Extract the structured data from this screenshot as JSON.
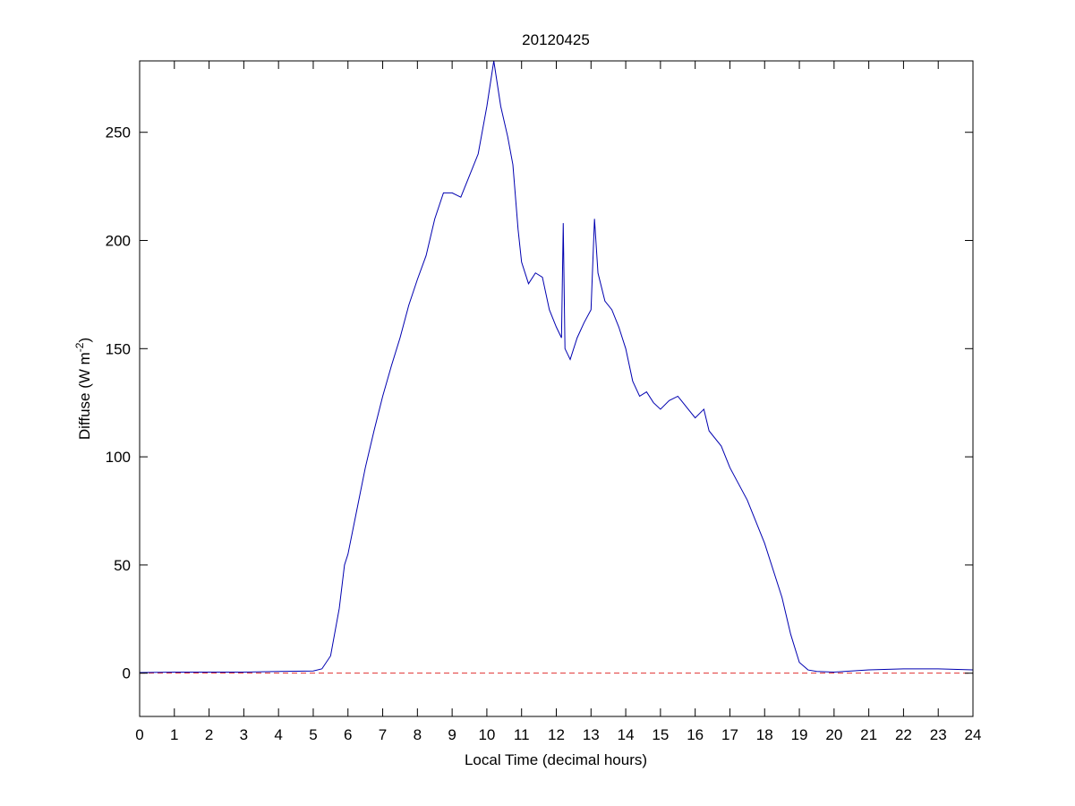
{
  "chart_data": {
    "type": "line",
    "title": "20120425",
    "xlabel": "Local Time (decimal hours)",
    "ylabel": [
      "Diffuse (W m",
      "-2",
      ")"
    ],
    "series": [
      {
        "color": "#0000b0",
        "x": [
          0,
          1,
          2,
          3,
          4,
          5,
          5.25,
          5.5,
          5.75,
          5.9,
          6,
          6.25,
          6.5,
          6.75,
          7,
          7.25,
          7.5,
          7.75,
          8,
          8.25,
          8.5,
          8.75,
          9,
          9.25,
          9.5,
          9.75,
          10,
          10.2,
          10.4,
          10.6,
          10.75,
          10.9,
          11,
          11.2,
          11.4,
          11.6,
          11.8,
          12,
          12.15,
          12.2,
          12.25,
          12.4,
          12.6,
          12.8,
          13,
          13.1,
          13.2,
          13.4,
          13.6,
          13.8,
          14,
          14.2,
          14.4,
          14.6,
          14.8,
          15,
          15.25,
          15.5,
          15.75,
          16,
          16.25,
          16.4,
          16.75,
          17,
          17.5,
          18,
          18.5,
          18.75,
          19,
          19.25,
          19.5,
          20,
          20.5,
          21,
          22,
          23,
          24
        ],
        "values": [
          0.3,
          0.5,
          0.5,
          0.5,
          0.8,
          1,
          2,
          8,
          30,
          50,
          55,
          75,
          95,
          112,
          128,
          142,
          155,
          170,
          182,
          193,
          210,
          222,
          222,
          220,
          230,
          240,
          262,
          283,
          262,
          248,
          235,
          205,
          190,
          180,
          185,
          183,
          168,
          160,
          155,
          208,
          150,
          145,
          155,
          162,
          168,
          210,
          185,
          172,
          168,
          160,
          150,
          135,
          128,
          130,
          125,
          122,
          126,
          128,
          123,
          118,
          122,
          112,
          105,
          95,
          80,
          60,
          35,
          18,
          5,
          1.5,
          0.8,
          0.5,
          1,
          1.5,
          2,
          2,
          1.5
        ]
      }
    ],
    "hline": {
      "value": 0,
      "color": "#e03030",
      "dashed": true
    },
    "xlim": [
      0,
      24
    ],
    "xticks": [
      0,
      1,
      2,
      3,
      4,
      5,
      6,
      7,
      8,
      9,
      10,
      11,
      12,
      13,
      14,
      15,
      16,
      17,
      18,
      19,
      20,
      21,
      22,
      23,
      24
    ],
    "ylim": [
      -20,
      283
    ],
    "yticks": [
      0,
      50,
      100,
      150,
      200,
      250
    ]
  }
}
